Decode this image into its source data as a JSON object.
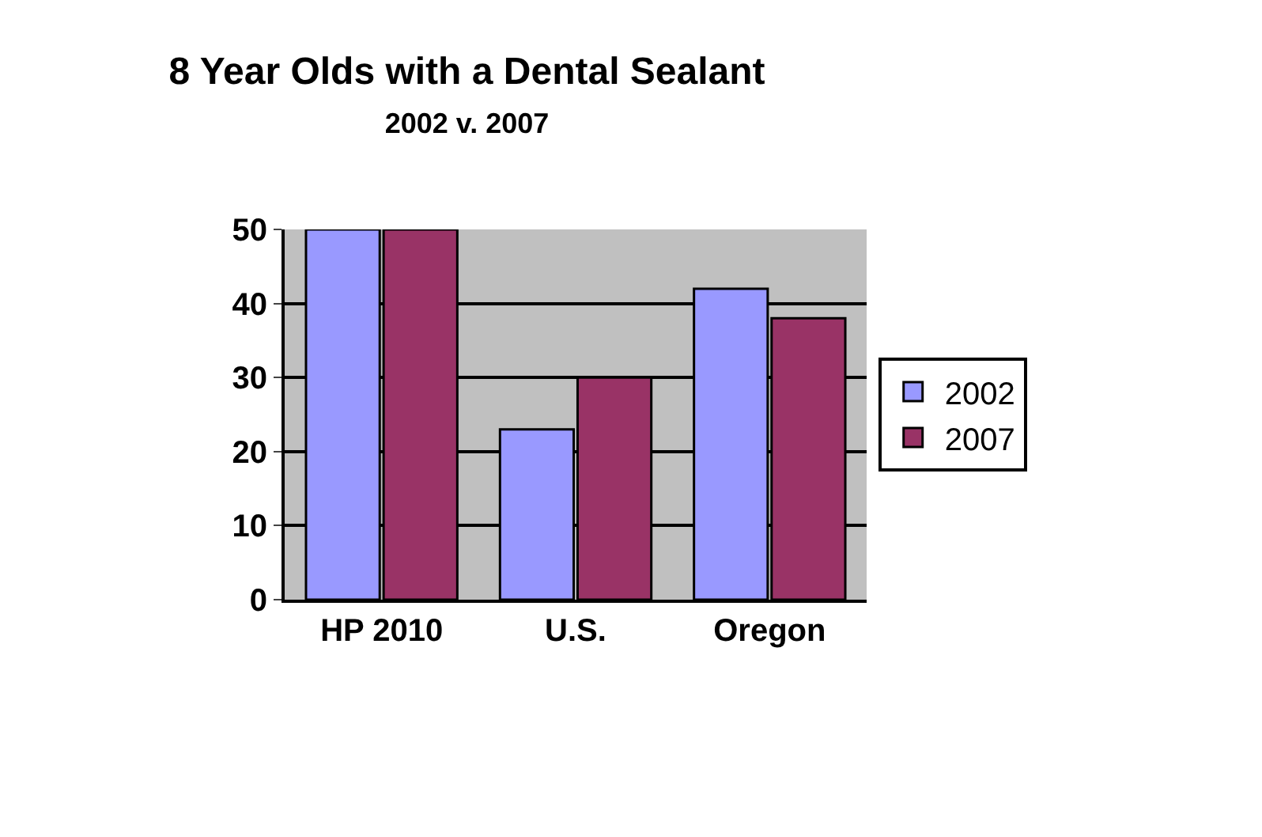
{
  "chart_data": {
    "type": "bar",
    "title": "8 Year Olds with a Dental Sealant",
    "subtitle": "2002 v. 2007",
    "categories": [
      "HP 2010",
      "U.S.",
      "Oregon"
    ],
    "series": [
      {
        "name": "2002",
        "color": "#9999ff",
        "values": [
          50,
          23,
          42
        ]
      },
      {
        "name": "2007",
        "color": "#993366",
        "values": [
          50,
          30,
          38
        ]
      }
    ],
    "ylim": [
      0,
      50
    ],
    "yticks": [
      0,
      10,
      20,
      30,
      40,
      50
    ],
    "grid": "y",
    "legend": "right"
  }
}
